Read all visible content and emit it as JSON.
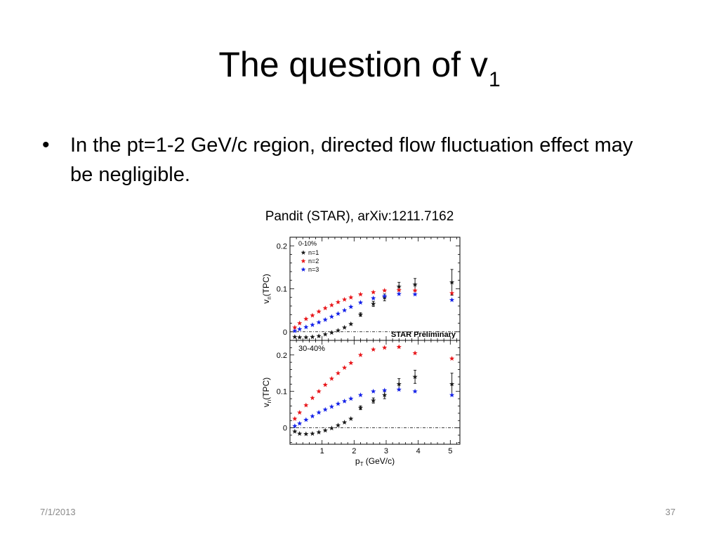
{
  "slide": {
    "title_main": "The question of v",
    "title_sub": "1",
    "bullet_symbol": "•",
    "bullet_text": "In the pt=1-2 GeV/c region, directed flow fluctuation effect may be negligible.",
    "caption": "Pandit (STAR), arXiv:1211.7162",
    "date": "7/1/2013",
    "page_number": "37"
  },
  "chart_data": [
    {
      "type": "scatter",
      "panel_label": "0-10%",
      "watermark": "STAR Preliminary",
      "ylabel_main": "v",
      "ylabel_sub": "n",
      "ylabel_tail": "(TPC)",
      "xlabel": "",
      "xlim": [
        0,
        5.3
      ],
      "ylim": [
        -0.02,
        0.22
      ],
      "yticks": [
        {
          "v": 0,
          "label": "0"
        },
        {
          "v": 0.1,
          "label": "0.1"
        },
        {
          "v": 0.2,
          "label": "0.2"
        }
      ],
      "xticks": [],
      "zero_line": true,
      "legend_placement": "top-left",
      "series": [
        {
          "name": "n=1",
          "color": "#1a1a1a",
          "x": [
            0.15,
            0.3,
            0.5,
            0.7,
            0.9,
            1.1,
            1.3,
            1.5,
            1.7,
            1.9,
            2.2,
            2.6,
            2.95,
            3.4,
            3.9,
            5.05
          ],
          "y": [
            -0.012,
            -0.013,
            -0.013,
            -0.012,
            -0.01,
            -0.006,
            -0.002,
            0.003,
            0.01,
            0.018,
            0.04,
            0.065,
            0.08,
            0.105,
            0.11,
            0.115
          ],
          "err": [
            0,
            0,
            0,
            0,
            0,
            0,
            0,
            0,
            0,
            0,
            0.004,
            0.006,
            0.008,
            0.01,
            0.014,
            0.03
          ]
        },
        {
          "name": "n=2",
          "color": "#e8161a",
          "x": [
            0.15,
            0.3,
            0.5,
            0.7,
            0.9,
            1.1,
            1.3,
            1.5,
            1.7,
            1.9,
            2.2,
            2.6,
            2.95,
            3.4,
            3.9,
            5.05
          ],
          "y": [
            0.01,
            0.02,
            0.03,
            0.038,
            0.047,
            0.055,
            0.062,
            0.069,
            0.075,
            0.08,
            0.087,
            0.092,
            0.096,
            0.097,
            0.096,
            0.09
          ],
          "err": [
            0,
            0,
            0,
            0,
            0,
            0,
            0,
            0,
            0,
            0,
            0,
            0,
            0,
            0,
            0,
            0
          ]
        },
        {
          "name": "n=3",
          "color": "#1421e8",
          "x": [
            0.15,
            0.3,
            0.5,
            0.7,
            0.9,
            1.1,
            1.3,
            1.5,
            1.7,
            1.9,
            2.2,
            2.6,
            2.95,
            3.4,
            3.9,
            5.05
          ],
          "y": [
            0.002,
            0.006,
            0.011,
            0.016,
            0.022,
            0.028,
            0.035,
            0.042,
            0.05,
            0.058,
            0.068,
            0.078,
            0.083,
            0.088,
            0.087,
            0.074
          ],
          "err": [
            0,
            0,
            0,
            0,
            0,
            0,
            0,
            0,
            0,
            0,
            0,
            0,
            0,
            0,
            0,
            0
          ]
        }
      ]
    },
    {
      "type": "scatter",
      "panel_label": "30-40%",
      "ylabel_main": "v",
      "ylabel_sub": "n",
      "ylabel_tail": "(TPC)",
      "xlabel_main": "p",
      "xlabel_sub": "T",
      "xlabel_tail": " (GeV/c)",
      "xlim": [
        0,
        5.3
      ],
      "ylim": [
        -0.045,
        0.24
      ],
      "yticks": [
        {
          "v": 0,
          "label": "0"
        },
        {
          "v": 0.1,
          "label": "0.1"
        },
        {
          "v": 0.2,
          "label": "0.2"
        }
      ],
      "xticks": [
        {
          "v": 1,
          "label": "1"
        },
        {
          "v": 2,
          "label": "2"
        },
        {
          "v": 3,
          "label": "3"
        },
        {
          "v": 4,
          "label": "4"
        },
        {
          "v": 5,
          "label": "5"
        }
      ],
      "zero_line": true,
      "series": [
        {
          "name": "n=1",
          "color": "#1a1a1a",
          "x": [
            0.15,
            0.3,
            0.5,
            0.7,
            0.9,
            1.1,
            1.3,
            1.5,
            1.7,
            1.9,
            2.2,
            2.6,
            2.95,
            3.4,
            3.9,
            5.05
          ],
          "y": [
            -0.01,
            -0.016,
            -0.017,
            -0.016,
            -0.012,
            -0.007,
            -0.001,
            0.007,
            0.015,
            0.025,
            0.055,
            0.075,
            0.09,
            0.12,
            0.14,
            0.12
          ],
          "err": [
            0,
            0,
            0,
            0,
            0,
            0,
            0,
            0,
            0,
            0,
            0.005,
            0.007,
            0.01,
            0.015,
            0.018,
            0.03
          ]
        },
        {
          "name": "n=2",
          "color": "#e8161a",
          "x": [
            0.15,
            0.3,
            0.5,
            0.7,
            0.9,
            1.1,
            1.3,
            1.5,
            1.7,
            1.9,
            2.2,
            2.6,
            2.95,
            3.4,
            3.9,
            5.05
          ],
          "y": [
            0.025,
            0.042,
            0.062,
            0.082,
            0.1,
            0.118,
            0.135,
            0.15,
            0.165,
            0.178,
            0.2,
            0.215,
            0.22,
            0.222,
            0.205,
            0.19
          ],
          "err": [
            0,
            0,
            0,
            0,
            0,
            0,
            0,
            0,
            0,
            0,
            0,
            0,
            0,
            0,
            0,
            0
          ]
        },
        {
          "name": "n=3",
          "color": "#1421e8",
          "x": [
            0.15,
            0.3,
            0.5,
            0.7,
            0.9,
            1.1,
            1.3,
            1.5,
            1.7,
            1.9,
            2.2,
            2.6,
            2.95,
            3.4,
            3.9,
            5.05
          ],
          "y": [
            0.005,
            0.012,
            0.022,
            0.032,
            0.042,
            0.05,
            0.058,
            0.066,
            0.073,
            0.08,
            0.09,
            0.1,
            0.103,
            0.105,
            0.1,
            0.09
          ],
          "err": [
            0,
            0,
            0,
            0,
            0,
            0,
            0,
            0,
            0,
            0,
            0,
            0,
            0,
            0,
            0,
            0
          ]
        }
      ]
    }
  ]
}
